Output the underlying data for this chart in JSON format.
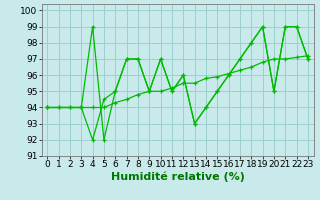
{
  "title": "",
  "xlabel": "Humidité relative (%)",
  "ylabel": "",
  "background_color": "#c8eaea",
  "grid_color": "#9ecece",
  "line_color": "#00bb00",
  "marker_color": "#00bb00",
  "xlim": [
    -0.5,
    23.5
  ],
  "ylim": [
    91,
    100.4
  ],
  "yticks": [
    91,
    92,
    93,
    94,
    95,
    96,
    97,
    98,
    99,
    100
  ],
  "xticks": [
    0,
    1,
    2,
    3,
    4,
    5,
    6,
    7,
    8,
    9,
    10,
    11,
    12,
    13,
    14,
    15,
    16,
    17,
    18,
    19,
    20,
    21,
    22,
    23
  ],
  "s1_x": [
    0,
    1,
    2,
    3,
    4,
    5,
    6,
    7,
    8,
    9,
    10,
    11,
    12,
    13,
    14,
    15,
    16,
    17,
    18,
    19,
    20,
    21,
    22,
    23
  ],
  "s1_y": [
    94,
    94,
    94,
    94,
    99,
    92,
    95,
    97,
    97,
    95,
    97,
    95,
    96,
    93,
    94,
    95,
    96,
    97,
    98,
    99,
    95,
    99,
    99,
    97
  ],
  "s2_x": [
    0,
    1,
    2,
    3,
    4,
    5,
    6,
    7,
    8,
    9,
    10,
    11,
    12,
    13,
    14,
    15,
    16,
    17,
    18,
    19,
    20,
    21,
    22,
    23
  ],
  "s2_y": [
    94,
    94,
    94,
    94,
    94,
    94,
    94.3,
    94.5,
    94.8,
    95,
    95,
    95.2,
    95.5,
    95.5,
    95.8,
    95.9,
    96.1,
    96.3,
    96.5,
    96.8,
    97,
    97,
    97.1,
    97.2
  ],
  "s3_x": [
    0,
    3,
    4,
    5,
    6,
    7,
    8,
    9,
    10,
    11,
    12,
    13,
    14,
    15,
    16,
    17,
    18,
    19,
    20,
    21,
    22,
    23
  ],
  "s3_y": [
    94,
    94,
    92,
    94.5,
    95,
    97,
    97,
    95,
    97,
    95,
    96,
    93,
    94,
    95,
    96,
    97,
    98,
    99,
    95,
    99,
    99,
    97
  ],
  "xlabel_fontsize": 8,
  "tick_fontsize": 6.5
}
